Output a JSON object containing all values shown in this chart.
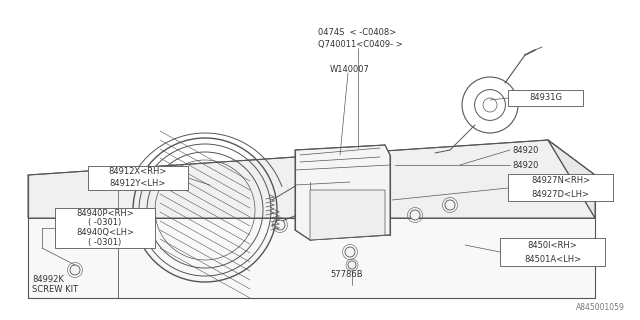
{
  "bg_color": "#ffffff",
  "line_color": "#555555",
  "text_color": "#333333",
  "watermark": "A845001059",
  "figsize": [
    6.4,
    3.2
  ],
  "dpi": 100,
  "labels": {
    "top_part1": "0474S  < -C0408>",
    "top_part2": "Q740011<C0409- >",
    "w140007": "W140007",
    "p84931G": "84931G",
    "p84920": "84920",
    "p84927N": "84927N<RH>",
    "p84927D": "84927D<LH>",
    "p84912X": "84912X<RH>",
    "p84912Y": "84912Y<LH>",
    "p84940P": "84940P<RH>",
    "p84940P2": "( -0301)",
    "p84940Q": "84940Q<LH>",
    "p84940Q2": "( -0301)",
    "p57786B": "57786B",
    "p84992K": "84992K",
    "screwkit": "SCREW KIT",
    "p8450K": "8450l<RH>",
    "p84501A": "84501A<LH>"
  }
}
